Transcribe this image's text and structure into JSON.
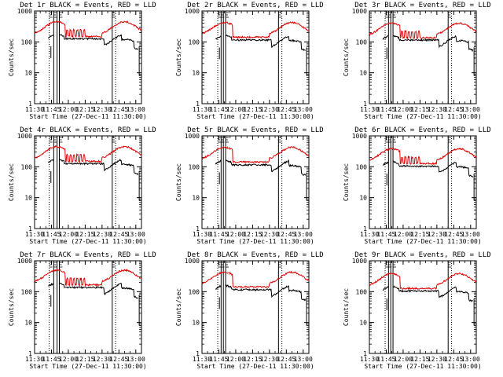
{
  "chart_data": [
    {
      "type": "line",
      "title": "Det 1r BLACK = Events, RED = LLD",
      "xlabel": "Start Time (27-Dec-11 11:30:00)",
      "ylabel": "Counts/sec",
      "x_ticks": [
        "11:30",
        "11:45",
        "12:00",
        "12:15",
        "12:30",
        "12:45",
        "13:00"
      ],
      "y_ticks": [
        "1",
        "10",
        "100",
        "1000"
      ],
      "ylim": [
        1,
        1000
      ],
      "xlim": [
        0,
        95
      ],
      "yscale": "log",
      "series": [
        {
          "color": "#e00000",
          "kind": "lld",
          "peak": 480,
          "base": 200
        },
        {
          "color": "#000000",
          "kind": "events",
          "peak": 150,
          "base": 120
        }
      ],
      "vlines": [
        13,
        17,
        20,
        22,
        69,
        72
      ],
      "spikes": [
        29,
        32,
        35,
        38,
        41,
        44
      ]
    },
    {
      "type": "line",
      "title": "Det 2r BLACK = Events, RED = LLD",
      "xlabel": "Start Time (27-Dec-11 11:30:00)",
      "ylabel": "Counts/sec",
      "x_ticks": [
        "11:30",
        "11:45",
        "12:00",
        "12:15",
        "12:30",
        "12:45",
        "13:00"
      ],
      "y_ticks": [
        "1",
        "10",
        "100",
        "1000"
      ],
      "ylim": [
        1,
        1000
      ],
      "xlim": [
        0,
        95
      ],
      "yscale": "log",
      "series": [
        {
          "color": "#e00000",
          "kind": "lld",
          "peak": 450,
          "base": 190
        },
        {
          "color": "#000000",
          "kind": "events",
          "peak": 140,
          "base": 110
        }
      ],
      "vlines": [
        14,
        17,
        19,
        21,
        68,
        71
      ],
      "spikes": []
    },
    {
      "type": "line",
      "title": "Det 3r BLACK = Events, RED = LLD",
      "xlabel": "Start Time (27-Dec-11 11:30:00)",
      "ylabel": "Counts/sec",
      "x_ticks": [
        "11:30",
        "11:45",
        "12:00",
        "12:15",
        "12:30",
        "12:45",
        "13:00"
      ],
      "y_ticks": [
        "1",
        "10",
        "100",
        "1000"
      ],
      "ylim": [
        1,
        1000
      ],
      "xlim": [
        0,
        95
      ],
      "yscale": "log",
      "series": [
        {
          "color": "#e00000",
          "kind": "lld",
          "peak": 420,
          "base": 180
        },
        {
          "color": "#000000",
          "kind": "events",
          "peak": 140,
          "base": 110
        }
      ],
      "vlines": [
        14,
        17,
        19,
        21,
        70,
        73
      ],
      "spikes": [
        29,
        32,
        35,
        38,
        41,
        44
      ]
    },
    {
      "type": "line",
      "title": "Det 4r BLACK = Events, RED = LLD",
      "xlabel": "Start Time (27-Dec-11 11:30:00)",
      "ylabel": "Counts/sec",
      "x_ticks": [
        "11:30",
        "11:45",
        "12:00",
        "12:15",
        "12:30",
        "12:45",
        "13:00"
      ],
      "y_ticks": [
        "1",
        "10",
        "100",
        "1000"
      ],
      "ylim": [
        1,
        1000
      ],
      "xlim": [
        0,
        95
      ],
      "yscale": "log",
      "series": [
        {
          "color": "#e00000",
          "kind": "lld",
          "peak": 480,
          "base": 200
        },
        {
          "color": "#000000",
          "kind": "events",
          "peak": 150,
          "base": 120
        }
      ],
      "vlines": [
        13,
        17,
        20,
        22,
        69,
        72
      ],
      "spikes": [
        29,
        32,
        35,
        38,
        41,
        44
      ]
    },
    {
      "type": "line",
      "title": "Det 5r BLACK = Events, RED = LLD",
      "xlabel": "Start Time (27-Dec-11 11:30:00)",
      "ylabel": "Counts/sec",
      "x_ticks": [
        "11:30",
        "11:45",
        "12:00",
        "12:15",
        "12:30",
        "12:45",
        "13:00"
      ],
      "y_ticks": [
        "1",
        "10",
        "100",
        "1000"
      ],
      "ylim": [
        1,
        1000
      ],
      "xlim": [
        0,
        95
      ],
      "yscale": "log",
      "series": [
        {
          "color": "#e00000",
          "kind": "lld",
          "peak": 450,
          "base": 190
        },
        {
          "color": "#000000",
          "kind": "events",
          "peak": 140,
          "base": 110
        }
      ],
      "vlines": [
        14,
        17,
        19,
        21,
        68,
        71
      ],
      "spikes": []
    },
    {
      "type": "line",
      "title": "Det 6r BLACK = Events, RED = LLD",
      "xlabel": "Start Time (27-Dec-11 11:30:00)",
      "ylabel": "Counts/sec",
      "x_ticks": [
        "11:30",
        "11:45",
        "12:00",
        "12:15",
        "12:30",
        "12:45",
        "13:00"
      ],
      "y_ticks": [
        "1",
        "10",
        "100",
        "1000"
      ],
      "ylim": [
        1,
        1000
      ],
      "xlim": [
        0,
        95
      ],
      "yscale": "log",
      "series": [
        {
          "color": "#e00000",
          "kind": "lld",
          "peak": 420,
          "base": 170
        },
        {
          "color": "#000000",
          "kind": "events",
          "peak": 130,
          "base": 100
        }
      ],
      "vlines": [
        14,
        17,
        19,
        21,
        70,
        73
      ],
      "spikes": [
        29,
        32,
        35,
        38,
        41,
        44
      ]
    },
    {
      "type": "line",
      "title": "Det 7r BLACK = Events, RED = LLD",
      "xlabel": "Start Time (27-Dec-11 11:30:00)",
      "ylabel": "Counts/sec",
      "x_ticks": [
        "11:30",
        "11:45",
        "12:00",
        "12:15",
        "12:30",
        "12:45",
        "13:00"
      ],
      "y_ticks": [
        "1",
        "10",
        "100",
        "1000"
      ],
      "ylim": [
        1,
        1000
      ],
      "xlim": [
        0,
        95
      ],
      "yscale": "log",
      "series": [
        {
          "color": "#e00000",
          "kind": "lld",
          "peak": 500,
          "base": 220
        },
        {
          "color": "#000000",
          "kind": "events",
          "peak": 160,
          "base": 130
        }
      ],
      "vlines": [
        13,
        17,
        20,
        22,
        69,
        72
      ],
      "spikes": [
        29,
        32,
        35,
        38,
        41,
        44
      ]
    },
    {
      "type": "line",
      "title": "Det 8r BLACK = Events, RED = LLD",
      "xlabel": "Start Time (27-Dec-11 11:30:00)",
      "ylabel": "Counts/sec",
      "x_ticks": [
        "11:30",
        "11:45",
        "12:00",
        "12:15",
        "12:30",
        "12:45",
        "13:00"
      ],
      "y_ticks": [
        "1",
        "10",
        "100",
        "1000"
      ],
      "ylim": [
        1,
        1000
      ],
      "xlim": [
        0,
        95
      ],
      "yscale": "log",
      "series": [
        {
          "color": "#e00000",
          "kind": "lld",
          "peak": 450,
          "base": 190
        },
        {
          "color": "#000000",
          "kind": "events",
          "peak": 140,
          "base": 110
        }
      ],
      "vlines": [
        14,
        17,
        19,
        21,
        68,
        71
      ],
      "spikes": []
    },
    {
      "type": "line",
      "title": "Det 9r BLACK = Events, RED = LLD",
      "xlabel": "Start Time (27-Dec-11 11:30:00)",
      "ylabel": "Counts/sec",
      "x_ticks": [
        "11:30",
        "11:45",
        "12:00",
        "12:15",
        "12:30",
        "12:45",
        "13:00"
      ],
      "y_ticks": [
        "1",
        "10",
        "100",
        "1000"
      ],
      "ylim": [
        1,
        1000
      ],
      "xlim": [
        0,
        95
      ],
      "yscale": "log",
      "series": [
        {
          "color": "#e00000",
          "kind": "lld",
          "peak": 420,
          "base": 170
        },
        {
          "color": "#000000",
          "kind": "events",
          "peak": 130,
          "base": 100
        }
      ],
      "vlines": [
        14,
        17,
        19,
        21,
        70,
        73
      ],
      "spikes": []
    }
  ]
}
